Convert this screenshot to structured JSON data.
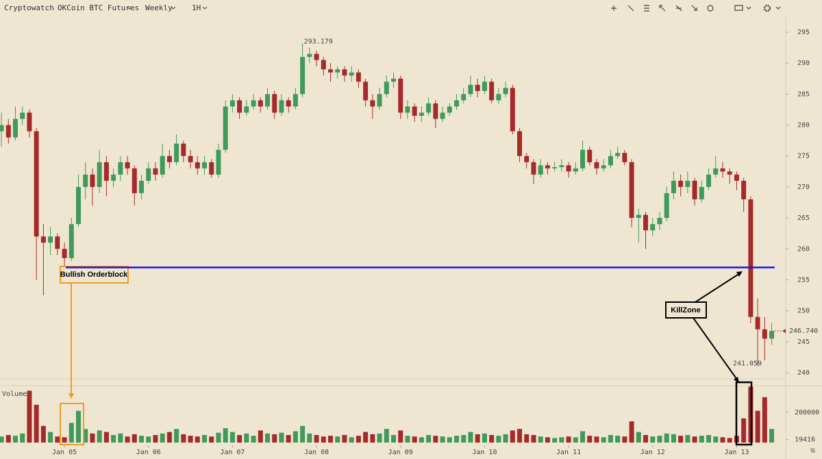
{
  "toolbar": {
    "brand": "Cryptowatch",
    "market": "OKCoin BTC Futures",
    "range": "Weekly",
    "interval": "1H"
  },
  "chart_data": {
    "type": "candlestick",
    "xlim": [
      -0.2,
      112
    ],
    "xticks": [
      {
        "value": 9,
        "label": "Jan 05"
      },
      {
        "value": 21,
        "label": "Jan 06"
      },
      {
        "value": 33,
        "label": "Jan 07"
      },
      {
        "value": 45,
        "label": "Jan 08"
      },
      {
        "value": 57,
        "label": "Jan 09"
      },
      {
        "value": 69,
        "label": "Jan 10"
      },
      {
        "value": 81,
        "label": "Jan 11"
      },
      {
        "value": 93,
        "label": "Jan 12"
      },
      {
        "value": 105,
        "label": "Jan 13"
      }
    ],
    "ylim": [
      240,
      295
    ],
    "yticks": [
      240,
      245,
      250,
      255,
      260,
      265,
      270,
      275,
      280,
      285,
      290,
      295
    ],
    "up_color": "#3f9a5c",
    "down_color": "#a52a2a",
    "open": [
      279,
      280,
      278,
      281,
      282,
      279,
      262,
      261,
      262,
      260,
      258.5,
      264,
      270,
      272,
      270,
      274,
      271,
      272,
      274,
      273,
      269,
      271,
      273,
      272,
      275,
      274,
      277,
      275,
      274,
      273,
      274,
      272,
      276,
      283,
      284,
      282,
      283,
      284,
      283,
      285,
      282,
      284,
      283,
      285,
      291,
      291.5,
      290.5,
      289,
      288.5,
      289,
      288,
      288.5,
      287,
      284,
      283,
      285,
      287,
      287.5,
      282,
      283,
      281.5,
      282,
      283.5,
      281,
      282,
      283,
      284,
      285,
      286.5,
      285.5,
      287,
      284,
      285,
      286,
      279,
      275,
      274,
      272,
      273.5,
      273,
      273.2,
      273.5,
      272.5,
      273,
      276,
      274,
      273,
      273.5,
      275,
      275.5,
      274,
      265,
      265.5,
      263,
      264,
      265,
      269,
      271,
      270,
      271,
      268,
      270,
      272,
      273,
      272.5,
      272,
      271,
      268,
      249,
      247,
      245.5
    ],
    "high": [
      282,
      281,
      283,
      283,
      282.5,
      279.5,
      264,
      263.5,
      262.5,
      261,
      265,
      272,
      274,
      273,
      276,
      275,
      273,
      275,
      275,
      273.5,
      272,
      274,
      274,
      277,
      276,
      278.5,
      277.5,
      276,
      275,
      275,
      274.5,
      277,
      284,
      285,
      284.5,
      284,
      285,
      284.5,
      286,
      285.5,
      285,
      284.5,
      286,
      293.179,
      292.5,
      292,
      291,
      290,
      289.5,
      289.5,
      289.5,
      289,
      287.5,
      285,
      286,
      288,
      288.5,
      288,
      284,
      283.5,
      283,
      284.5,
      284,
      283,
      283.5,
      285,
      286,
      288,
      287.5,
      288,
      287.5,
      286,
      287,
      286.5,
      279.5,
      275.5,
      274.5,
      274.5,
      274,
      274,
      274.5,
      274,
      274,
      277.5,
      276.5,
      274.5,
      274.5,
      276,
      276.5,
      276,
      274.5,
      266.5,
      266,
      265,
      266,
      270,
      272.5,
      272,
      272.5,
      271.5,
      271,
      273,
      275,
      274,
      273,
      272.5,
      271.5,
      268.5,
      252,
      249,
      248
    ],
    "low": [
      276.5,
      277,
      277.5,
      280,
      278,
      255,
      252.5,
      259,
      259,
      257,
      258,
      263.5,
      268,
      267,
      269,
      268.5,
      270,
      271,
      272,
      267,
      268,
      270.5,
      271,
      271.5,
      273,
      273.5,
      274,
      273,
      272,
      272,
      271.5,
      271.5,
      275.5,
      282,
      281,
      281.5,
      282.5,
      282,
      282.5,
      281,
      281.5,
      282,
      282.5,
      284.5,
      290,
      289.5,
      288,
      287,
      287.5,
      287,
      287,
      286,
      283,
      281,
      282.5,
      284.5,
      286,
      281,
      281,
      280.5,
      280.5,
      281.5,
      279.5,
      280.5,
      281.5,
      282.5,
      283.5,
      284.5,
      284.5,
      285,
      283.5,
      283.5,
      284.5,
      278.5,
      274,
      273,
      270.5,
      271.5,
      272,
      272.5,
      272.5,
      271.5,
      272,
      272.5,
      273.5,
      272,
      272.5,
      273,
      274.5,
      273.5,
      263.5,
      261,
      260,
      262,
      263,
      264.5,
      268,
      268.5,
      269,
      267,
      267.5,
      269.5,
      271.5,
      271.5,
      270.5,
      269.5,
      266,
      248,
      241.059,
      242,
      244.5
    ],
    "close": [
      280,
      278,
      281,
      282,
      279,
      262,
      261,
      262,
      260,
      258.5,
      264,
      270,
      272,
      270,
      274,
      271,
      272,
      274,
      273,
      269,
      271,
      273,
      272,
      275,
      274,
      277,
      275,
      274,
      273,
      274,
      272,
      276,
      283,
      284,
      282,
      283,
      284,
      283,
      285,
      282,
      284,
      283,
      285,
      291,
      291.5,
      290.5,
      289,
      288.5,
      289,
      288,
      288.5,
      287,
      284,
      283,
      285,
      287,
      287.5,
      282,
      283,
      281.5,
      282,
      283.5,
      281,
      282,
      283,
      284,
      285,
      286.5,
      285.5,
      287,
      284,
      285,
      286,
      279,
      275,
      274,
      272,
      273.5,
      273,
      273.2,
      273.5,
      272.5,
      273,
      276,
      274,
      273,
      273.5,
      275,
      275.5,
      274,
      265,
      265.5,
      263,
      264,
      265,
      269,
      271,
      270,
      271,
      268,
      270,
      272,
      273,
      272.5,
      272,
      271,
      268,
      249,
      247,
      245.5,
      246.74
    ],
    "high_label": {
      "value": 293.179,
      "label": "293.179"
    },
    "low_label": {
      "value": 241.059,
      "label": "241.059"
    },
    "last_price": {
      "value": 246.74,
      "label": "246.740"
    },
    "level": {
      "value": 257,
      "color": "#1414f0"
    },
    "annotations": [
      {
        "text": "Bullish Orderblock",
        "color": "#f39a1e"
      },
      {
        "text": "KillZone",
        "color": "#000000"
      }
    ],
    "volume": {
      "label": "Volume",
      "ylim": [
        0,
        376000
      ],
      "yticks": [
        19416,
        200000
      ],
      "values": [
        40000,
        50000,
        45000,
        60000,
        343000,
        250000,
        110000,
        70000,
        40000,
        35000,
        130000,
        210000,
        90000,
        60000,
        80000,
        70000,
        50000,
        60000,
        40000,
        55000,
        45000,
        40000,
        50000,
        60000,
        70000,
        90000,
        55000,
        45000,
        40000,
        50000,
        40000,
        65000,
        95000,
        70000,
        50000,
        60000,
        45000,
        80000,
        60000,
        55000,
        65000,
        50000,
        75000,
        110000,
        60000,
        50000,
        40000,
        45000,
        40000,
        50000,
        35000,
        45000,
        70000,
        55000,
        60000,
        90000,
        50000,
        80000,
        45000,
        40000,
        35000,
        50000,
        45000,
        40000,
        35000,
        45000,
        50000,
        70000,
        55000,
        60000,
        50000,
        45000,
        55000,
        80000,
        90000,
        55000,
        50000,
        40000,
        35000,
        30000,
        35000,
        40000,
        35000,
        75000,
        45000,
        40000,
        35000,
        50000,
        45000,
        40000,
        140000,
        70000,
        50000,
        40000,
        45000,
        60000,
        55000,
        45000,
        50000,
        40000,
        45000,
        50000,
        40000,
        35000,
        30000,
        45000,
        160000,
        370000,
        210000,
        300000,
        90000
      ]
    }
  }
}
